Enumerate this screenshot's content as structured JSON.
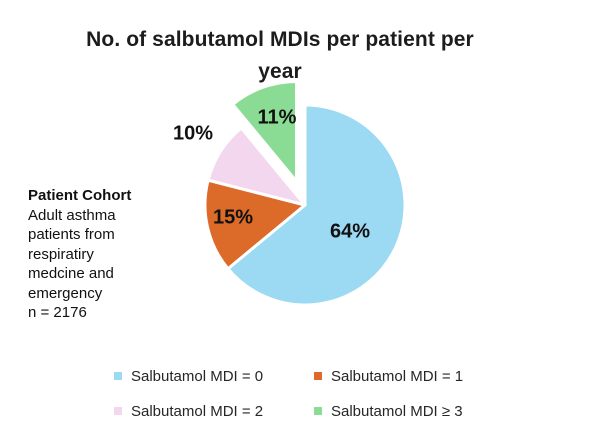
{
  "title": {
    "lines": [
      "No. of salbutamol MDIs per patient per",
      "year"
    ]
  },
  "annotation": {
    "heading": "Patient Cohort",
    "lines": [
      "Adult asthma",
      "patients from",
      "respiratiry",
      "medcine and",
      "emergency",
      "n = 2176"
    ]
  },
  "chart_data": {
    "type": "pie",
    "title": "No. of salbutamol MDIs per patient per year",
    "categories": [
      "Salbutamol MDI = 0",
      "Salbutamol MDI = 1",
      "Salbutamol MDI = 2",
      "Salbutamol MDI ≥ 3"
    ],
    "values": [
      64,
      15,
      10,
      11
    ],
    "unit": "%",
    "start_angle_deg": 0,
    "direction": "clockwise",
    "legend_position": "bottom",
    "label_color": "#111111",
    "slices": [
      {
        "name": "Salbutamol MDI = 0",
        "value": 64,
        "label": "64%",
        "color": "#9CD9F2",
        "exploded": false
      },
      {
        "name": "Salbutamol MDI = 1",
        "value": 15,
        "label": "15%",
        "color": "#DC6A28",
        "exploded": false
      },
      {
        "name": "Salbutamol MDI = 2",
        "value": 10,
        "label": "10%",
        "color": "#F2D7EF",
        "exploded": false
      },
      {
        "name": "Salbutamol MDI ≥ 3",
        "value": 11,
        "label": "11%",
        "color": "#8ADB93",
        "exploded": true
      }
    ]
  }
}
